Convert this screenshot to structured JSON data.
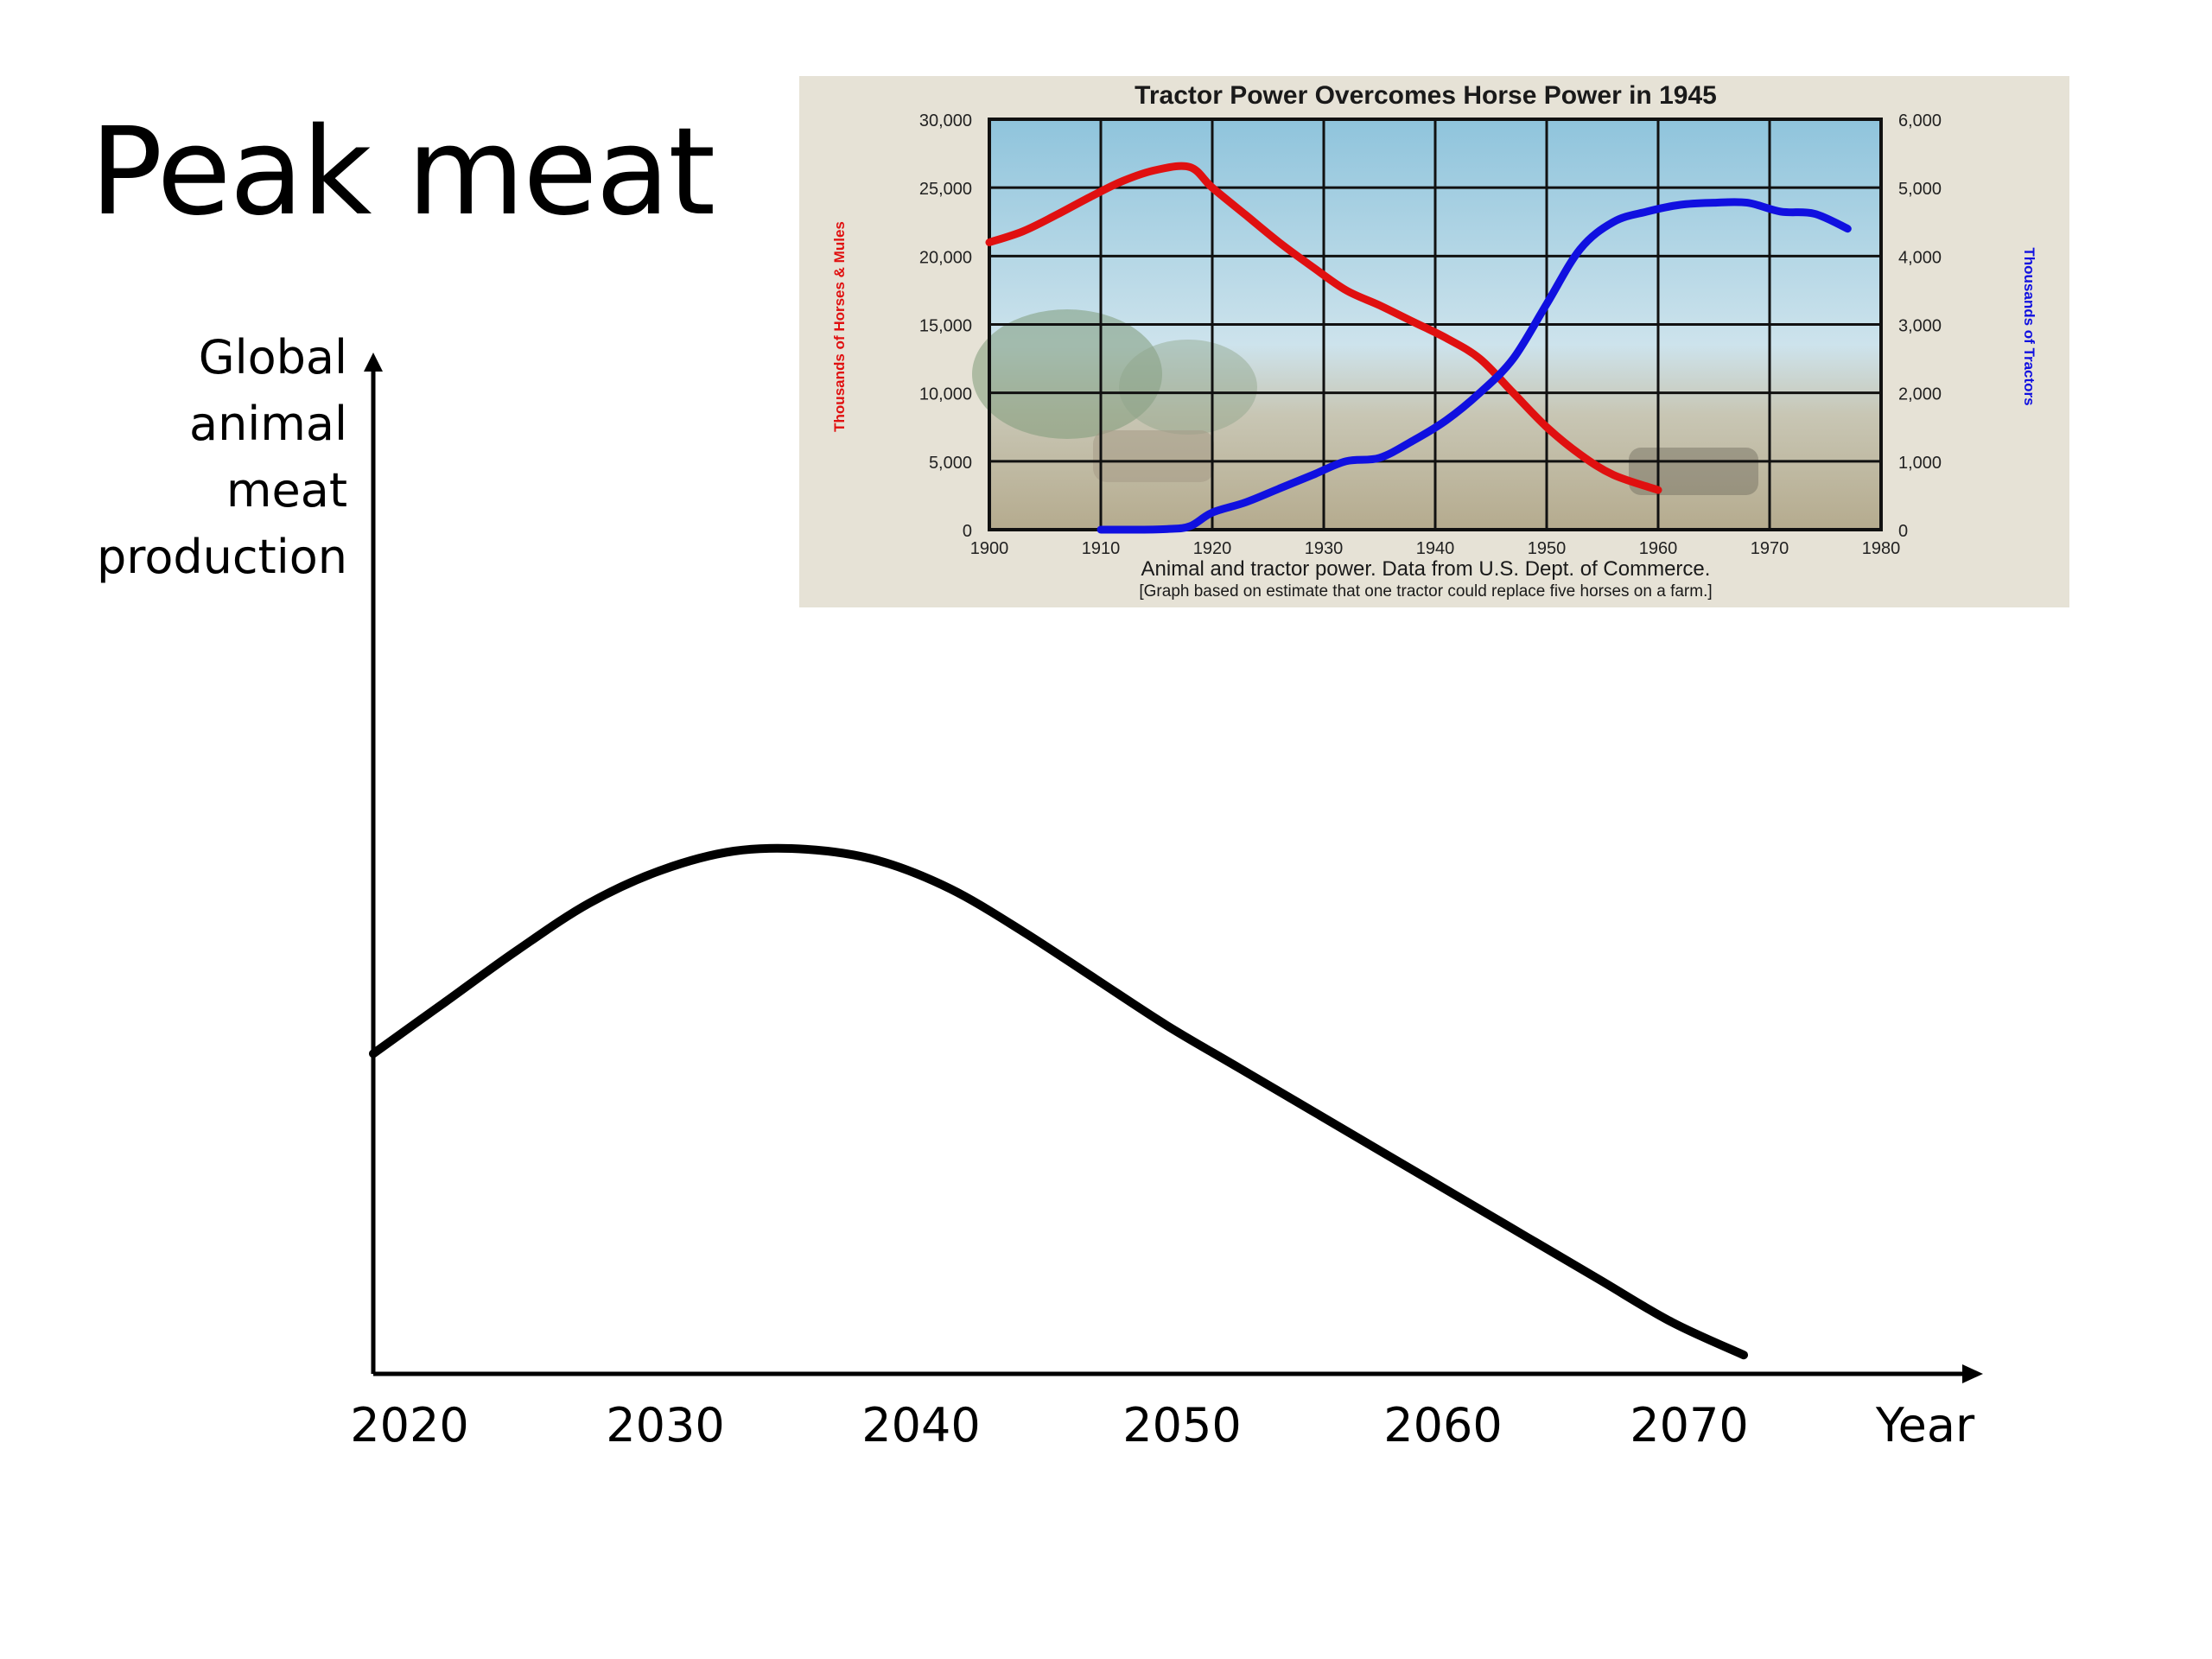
{
  "slide": {
    "title": "Peak meat"
  },
  "chart_data": [
    {
      "type": "line",
      "ylabel_lines": [
        "Global",
        "animal",
        "meat",
        "production"
      ],
      "xlabel": "Year",
      "x_ticks": [
        "2020",
        "2030",
        "2040",
        "2050",
        "2060",
        "2070"
      ],
      "xlim": [
        2019,
        2082
      ],
      "ylim": [
        0,
        100
      ],
      "grid": false,
      "y_ticks_shown": false,
      "series": [
        {
          "color": "#000000",
          "x": [
            2019,
            2022,
            2025,
            2028,
            2031,
            2034,
            2037,
            2040,
            2043,
            2046,
            2049,
            2052,
            2055,
            2058,
            2061,
            2064,
            2067,
            2070,
            2073,
            2076
          ],
          "values": [
            34,
            39.5,
            45,
            50,
            53.5,
            55.5,
            55.7,
            54.5,
            51.5,
            47,
            42,
            37,
            32.5,
            28,
            23.5,
            19,
            14.5,
            10,
            5.5,
            2
          ]
        }
      ]
    },
    {
      "type": "line",
      "title": "Tractor Power Overcomes Horse Power in 1945",
      "caption_lines": [
        "Animal and tractor power. Data from U.S. Dept. of Commerce.",
        "[Graph based on estimate that one tractor could replace five horses on a farm.]"
      ],
      "left_ylabel": "Thousands of Horses & Mules",
      "right_ylabel": "Thousands of Tractors",
      "x_ticks": [
        "1900",
        "1910",
        "1920",
        "1930",
        "1940",
        "1950",
        "1960",
        "1970",
        "1980"
      ],
      "left_y_ticks": [
        "0",
        "5,000",
        "10,000",
        "15,000",
        "20,000",
        "25,000",
        "30,000"
      ],
      "right_y_ticks": [
        "0",
        "1,000",
        "2,000",
        "3,000",
        "4,000",
        "5,000",
        "6,000"
      ],
      "xlim": [
        1900,
        1980
      ],
      "left_ylim": [
        0,
        30000
      ],
      "right_ylim": [
        0,
        6000
      ],
      "grid": true,
      "series": [
        {
          "axis": "left",
          "color": "#e01010",
          "x": [
            1900,
            1903,
            1906,
            1909,
            1912,
            1915,
            1918,
            1920,
            1923,
            1926,
            1929,
            1932,
            1935,
            1938,
            1941,
            1944,
            1947,
            1950,
            1953,
            1956,
            1960
          ],
          "values": [
            21000,
            21800,
            23000,
            24300,
            25500,
            26300,
            26500,
            25000,
            23000,
            21000,
            19200,
            17500,
            16400,
            15200,
            14000,
            12500,
            10000,
            7500,
            5500,
            4000,
            2900
          ]
        },
        {
          "axis": "right",
          "color": "#1010e0",
          "x": [
            1910,
            1913,
            1916,
            1918,
            1920,
            1923,
            1926,
            1929,
            1932,
            1935,
            1938,
            1941,
            1944,
            1947,
            1950,
            1953,
            1956,
            1959,
            1962,
            1965,
            1968,
            1971,
            1974,
            1977
          ],
          "values": [
            0,
            0,
            10,
            50,
            250,
            400,
            600,
            800,
            1000,
            1050,
            1300,
            1600,
            2000,
            2500,
            3300,
            4100,
            4500,
            4650,
            4750,
            4780,
            4780,
            4650,
            4620,
            4400
          ]
        }
      ]
    }
  ]
}
